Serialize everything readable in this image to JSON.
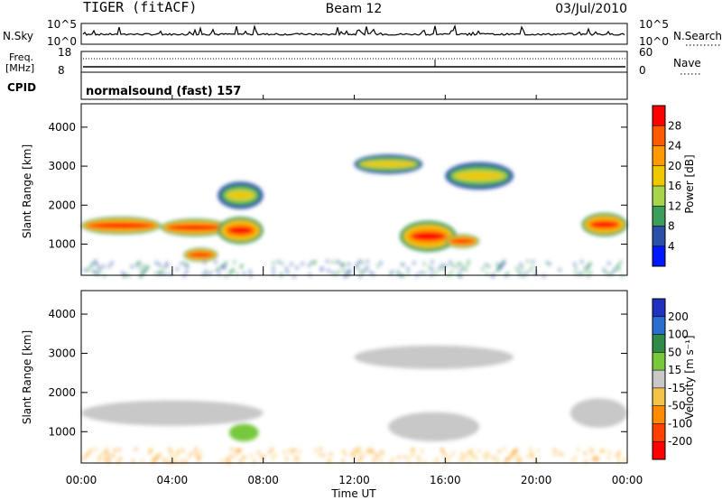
{
  "header": {
    "radar": "TIGER (fitACF)",
    "beam": "Beam 12",
    "date": "03/Jul/2010"
  },
  "noise_panel": {
    "left_label": "N.Sky",
    "right_label": "N.Search",
    "left_ticks": [
      "10^5",
      "10^0"
    ],
    "right_ticks": [
      "10^5",
      "10^0"
    ]
  },
  "freq_panel": {
    "left_label_1": "Freq.",
    "left_label_2": "[MHz]",
    "right_label": "Nave",
    "left_ticks": [
      "18",
      "8"
    ],
    "right_ticks": [
      "60",
      "0"
    ]
  },
  "cpid_panel": {
    "label": "CPID",
    "value": "normalsound (fast) 157"
  },
  "x_axis": {
    "label": "Time UT",
    "ticks": [
      "00:00",
      "04:00",
      "08:00",
      "12:00",
      "16:00",
      "20:00",
      "00:00"
    ]
  },
  "power_panel": {
    "ylabel": "Slant Range [km]",
    "yticks": [
      "4000",
      "3000",
      "2000",
      "1000"
    ],
    "colorbar_label": "Power [dB]",
    "colorbar_ticks": [
      "28",
      "24",
      "20",
      "16",
      "12",
      "8",
      "4"
    ],
    "colorbar_colors": [
      "#ff0000",
      "#ff5a00",
      "#ff9900",
      "#f0c800",
      "#a6d44a",
      "#3c9e5a",
      "#2c4fa8",
      "#0018ff"
    ]
  },
  "velocity_panel": {
    "ylabel": "Slant Range [km]",
    "yticks": [
      "4000",
      "3000",
      "2000",
      "1000"
    ],
    "colorbar_label": "Velocity [m s⁻¹]",
    "colorbar_ticks": [
      "200",
      "100",
      "50",
      "15",
      "-15",
      "-50",
      "-100",
      "-200"
    ],
    "colorbar_colors": [
      "#2030c0",
      "#2a6ed0",
      "#2e8c46",
      "#78c83c",
      "#c8c8c8",
      "#f5c34a",
      "#ff8c00",
      "#ff4000",
      "#ff0000"
    ]
  },
  "chart_data": {
    "type": "heatmap",
    "x_range_hours": [
      0,
      24
    ],
    "y_range_km": [
      200,
      4600
    ],
    "power_regions": [
      {
        "t0": 0.0,
        "t1": 3.5,
        "r0": 1250,
        "r1": 1700,
        "level": "high"
      },
      {
        "t0": 3.5,
        "t1": 6.5,
        "r0": 1200,
        "r1": 1650,
        "level": "high"
      },
      {
        "t0": 6.0,
        "t1": 8.0,
        "r0": 1000,
        "r1": 1700,
        "level": "high"
      },
      {
        "t0": 4.5,
        "t1": 6.0,
        "r0": 550,
        "r1": 900,
        "level": "high"
      },
      {
        "t0": 14.0,
        "t1": 16.5,
        "r0": 800,
        "r1": 1600,
        "level": "high"
      },
      {
        "t0": 16.0,
        "t1": 17.5,
        "r0": 900,
        "r1": 1250,
        "level": "high"
      },
      {
        "t0": 22.0,
        "t1": 24.0,
        "r0": 1200,
        "r1": 1800,
        "level": "high"
      },
      {
        "t0": 12.0,
        "t1": 15.0,
        "r0": 2800,
        "r1": 3300,
        "level": "low"
      },
      {
        "t0": 16.0,
        "t1": 19.0,
        "r0": 2400,
        "r1": 3100,
        "level": "low"
      },
      {
        "t0": 6.0,
        "t1": 8.0,
        "r0": 1900,
        "r1": 2600,
        "level": "low"
      }
    ],
    "velocity_regions": [
      {
        "t0": 0.0,
        "t1": 8.0,
        "r0": 1150,
        "r1": 1800,
        "class": "-15..15"
      },
      {
        "t0": 6.5,
        "t1": 7.8,
        "r0": 750,
        "r1": 1200,
        "class": "15..50"
      },
      {
        "t0": 13.5,
        "t1": 17.5,
        "r0": 750,
        "r1": 1500,
        "class": "-15..15"
      },
      {
        "t0": 21.5,
        "t1": 24.0,
        "r0": 1100,
        "r1": 1850,
        "class": "-15..15"
      },
      {
        "t0": 12.0,
        "t1": 19.0,
        "r0": 2600,
        "r1": 3200,
        "class": "-15..15"
      }
    ]
  }
}
